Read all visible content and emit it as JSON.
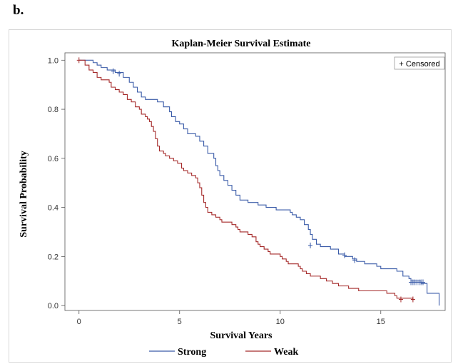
{
  "figure": {
    "panel_label": "b."
  },
  "colors": {
    "strong": "#3a5ba8",
    "weak": "#a52a2a",
    "axis": "#555555"
  },
  "chart_data": {
    "type": "line",
    "subtype": "kaplan-meier-step",
    "title": "Kaplan-Meier Survival Estimate",
    "xlabel": "Survival Years",
    "ylabel": "Survival Probability",
    "xlim": [
      -0.7,
      18.2
    ],
    "ylim": [
      -0.02,
      1.03
    ],
    "x_ticks": [
      0,
      5,
      10,
      15
    ],
    "y_ticks": [
      0.0,
      0.2,
      0.4,
      0.6,
      0.8,
      1.0
    ],
    "y_tick_labels": [
      "0.0",
      "0.2",
      "0.4",
      "0.6",
      "0.8",
      "1.0"
    ],
    "grid": false,
    "censor_legend": "+ Censored",
    "censor_legend_position": "top-right",
    "legend_position": "bottom",
    "series": [
      {
        "name": "Strong",
        "color_key": "strong",
        "points": [
          [
            0,
            1.0
          ],
          [
            0.7,
            0.99
          ],
          [
            0.9,
            0.98
          ],
          [
            1.1,
            0.97
          ],
          [
            1.4,
            0.96
          ],
          [
            1.8,
            0.95
          ],
          [
            2.2,
            0.93
          ],
          [
            2.5,
            0.91
          ],
          [
            2.7,
            0.89
          ],
          [
            2.9,
            0.87
          ],
          [
            3.1,
            0.85
          ],
          [
            3.3,
            0.84
          ],
          [
            3.9,
            0.83
          ],
          [
            4.2,
            0.81
          ],
          [
            4.5,
            0.79
          ],
          [
            4.6,
            0.77
          ],
          [
            4.8,
            0.75
          ],
          [
            5.0,
            0.74
          ],
          [
            5.2,
            0.72
          ],
          [
            5.4,
            0.7
          ],
          [
            5.8,
            0.69
          ],
          [
            6.0,
            0.67
          ],
          [
            6.2,
            0.65
          ],
          [
            6.4,
            0.62
          ],
          [
            6.7,
            0.6
          ],
          [
            6.8,
            0.57
          ],
          [
            6.9,
            0.55
          ],
          [
            7.0,
            0.53
          ],
          [
            7.2,
            0.51
          ],
          [
            7.4,
            0.49
          ],
          [
            7.6,
            0.47
          ],
          [
            7.8,
            0.45
          ],
          [
            8.0,
            0.43
          ],
          [
            8.4,
            0.42
          ],
          [
            8.9,
            0.41
          ],
          [
            9.3,
            0.4
          ],
          [
            9.8,
            0.39
          ],
          [
            10.5,
            0.38
          ],
          [
            10.6,
            0.37
          ],
          [
            10.8,
            0.36
          ],
          [
            11.0,
            0.35
          ],
          [
            11.2,
            0.33
          ],
          [
            11.4,
            0.31
          ],
          [
            11.5,
            0.29
          ],
          [
            11.6,
            0.27
          ],
          [
            11.8,
            0.25
          ],
          [
            12.0,
            0.24
          ],
          [
            12.5,
            0.23
          ],
          [
            12.9,
            0.21
          ],
          [
            13.2,
            0.2
          ],
          [
            13.6,
            0.19
          ],
          [
            13.8,
            0.18
          ],
          [
            14.2,
            0.17
          ],
          [
            14.8,
            0.16
          ],
          [
            15.0,
            0.15
          ],
          [
            15.8,
            0.14
          ],
          [
            16.1,
            0.12
          ],
          [
            16.4,
            0.11
          ],
          [
            16.5,
            0.1
          ],
          [
            17.0,
            0.09
          ],
          [
            17.3,
            0.05
          ],
          [
            17.9,
            0.05
          ],
          [
            17.9,
            0.0
          ]
        ],
        "censored": [
          [
            1.7,
            0.955
          ],
          [
            2.0,
            0.945
          ],
          [
            11.5,
            0.245
          ],
          [
            13.2,
            0.205
          ],
          [
            13.7,
            0.185
          ],
          [
            16.5,
            0.095
          ],
          [
            16.6,
            0.095
          ],
          [
            16.7,
            0.095
          ],
          [
            16.8,
            0.095
          ],
          [
            16.9,
            0.095
          ],
          [
            17.0,
            0.095
          ],
          [
            17.1,
            0.095
          ]
        ]
      },
      {
        "name": "Weak",
        "color_key": "weak",
        "points": [
          [
            0,
            1.0
          ],
          [
            0.3,
            0.98
          ],
          [
            0.5,
            0.96
          ],
          [
            0.7,
            0.95
          ],
          [
            0.9,
            0.93
          ],
          [
            1.1,
            0.92
          ],
          [
            1.5,
            0.91
          ],
          [
            1.6,
            0.89
          ],
          [
            1.8,
            0.88
          ],
          [
            2.0,
            0.87
          ],
          [
            2.2,
            0.86
          ],
          [
            2.4,
            0.84
          ],
          [
            2.6,
            0.83
          ],
          [
            2.8,
            0.81
          ],
          [
            3.0,
            0.8
          ],
          [
            3.1,
            0.78
          ],
          [
            3.3,
            0.77
          ],
          [
            3.4,
            0.76
          ],
          [
            3.5,
            0.75
          ],
          [
            3.6,
            0.73
          ],
          [
            3.7,
            0.71
          ],
          [
            3.8,
            0.68
          ],
          [
            3.9,
            0.65
          ],
          [
            4.0,
            0.63
          ],
          [
            4.2,
            0.62
          ],
          [
            4.3,
            0.61
          ],
          [
            4.5,
            0.6
          ],
          [
            4.7,
            0.59
          ],
          [
            4.9,
            0.58
          ],
          [
            5.1,
            0.56
          ],
          [
            5.2,
            0.55
          ],
          [
            5.4,
            0.54
          ],
          [
            5.6,
            0.53
          ],
          [
            5.8,
            0.52
          ],
          [
            5.9,
            0.5
          ],
          [
            6.0,
            0.48
          ],
          [
            6.1,
            0.45
          ],
          [
            6.2,
            0.42
          ],
          [
            6.3,
            0.4
          ],
          [
            6.4,
            0.38
          ],
          [
            6.6,
            0.37
          ],
          [
            6.8,
            0.36
          ],
          [
            7.0,
            0.35
          ],
          [
            7.1,
            0.34
          ],
          [
            7.6,
            0.33
          ],
          [
            7.8,
            0.32
          ],
          [
            7.9,
            0.31
          ],
          [
            8.0,
            0.3
          ],
          [
            8.4,
            0.29
          ],
          [
            8.6,
            0.28
          ],
          [
            8.8,
            0.26
          ],
          [
            8.9,
            0.25
          ],
          [
            9.0,
            0.24
          ],
          [
            9.2,
            0.23
          ],
          [
            9.4,
            0.22
          ],
          [
            9.5,
            0.21
          ],
          [
            10.0,
            0.2
          ],
          [
            10.1,
            0.19
          ],
          [
            10.3,
            0.18
          ],
          [
            10.4,
            0.17
          ],
          [
            10.9,
            0.16
          ],
          [
            11.0,
            0.15
          ],
          [
            11.1,
            0.14
          ],
          [
            11.3,
            0.13
          ],
          [
            11.5,
            0.12
          ],
          [
            12.0,
            0.11
          ],
          [
            12.3,
            0.1
          ],
          [
            12.6,
            0.09
          ],
          [
            12.9,
            0.08
          ],
          [
            13.4,
            0.07
          ],
          [
            13.9,
            0.06
          ],
          [
            15.3,
            0.05
          ],
          [
            15.7,
            0.04
          ],
          [
            15.8,
            0.03
          ],
          [
            16.6,
            0.02
          ],
          [
            16.6,
            0.02
          ]
        ],
        "censored": [
          [
            0.0,
            1.0
          ],
          [
            16.0,
            0.025
          ],
          [
            16.6,
            0.025
          ]
        ]
      }
    ]
  }
}
